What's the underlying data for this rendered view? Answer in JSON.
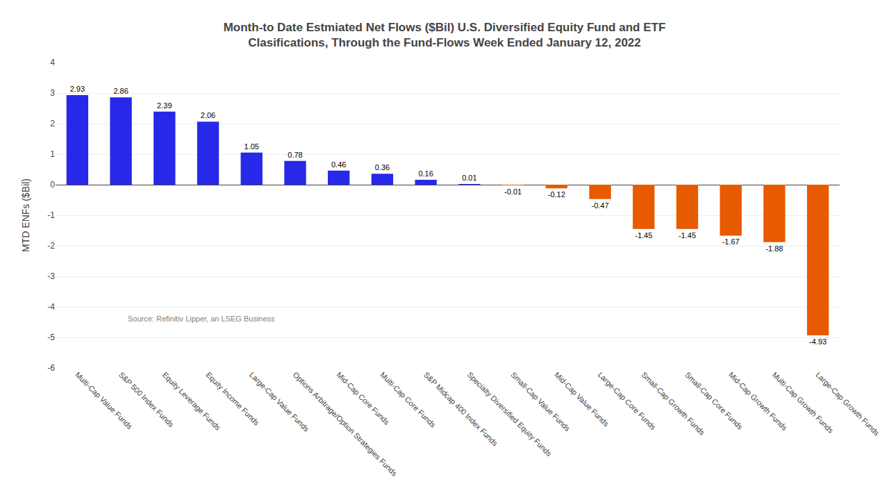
{
  "chart_data": {
    "type": "bar",
    "title": "Month-to Date Estmiated Net Flows ($Bil) U.S. Diversified Equity Fund and ETF\nClasifications, Through the Fund-Flows Week Ended January 12, 2022",
    "ylabel": "MTD ENFs ($Bil)",
    "categories": [
      "Multi-Cap Value Funds",
      "S&P 500 Index Funds",
      "Equity Leverage Funds",
      "Equity Income Funds",
      "Large-Cap Value Funds",
      "Options Arbitrage/Option Strategies Funds",
      "Mid-Cap Core Funds",
      "Multi-Cap Core Funds",
      "S&P Midcap 400 Index Funds",
      "Specialty Diversified Equity Funds",
      "Small-Cap Value Funds",
      "Mid-Cap Value Funds",
      "Large-Cap Core Funds",
      "Small-Cap Growth Funds",
      "Small-Cap Core Funds",
      "Mid-Cap Growth Funds",
      "Multi-Cap Growth Funds",
      "Large-Cap Growth Funds"
    ],
    "values": [
      2.93,
      2.86,
      2.39,
      2.06,
      1.05,
      0.78,
      0.46,
      0.36,
      0.16,
      0.01,
      -0.01,
      -0.12,
      -0.47,
      -1.45,
      -1.45,
      -1.67,
      -1.88,
      -4.93
    ],
    "colors": [
      "#2828e8",
      "#2828e8",
      "#2828e8",
      "#2828e8",
      "#2828e8",
      "#2828e8",
      "#2828e8",
      "#2828e8",
      "#2828e8",
      "#2828e8",
      "#e85a00",
      "#e85a00",
      "#e85a00",
      "#e85a00",
      "#e85a00",
      "#e85a00",
      "#e85a00",
      "#e85a00"
    ],
    "ylim": [
      -6,
      4
    ],
    "yticks": [
      -6,
      -5,
      -4,
      -3,
      -2,
      -1,
      0,
      1,
      2,
      3,
      4
    ],
    "annotations": [
      "Source: Refinitiv Lipper, an LSEG Business"
    ],
    "data_labels": true,
    "grid": true
  }
}
